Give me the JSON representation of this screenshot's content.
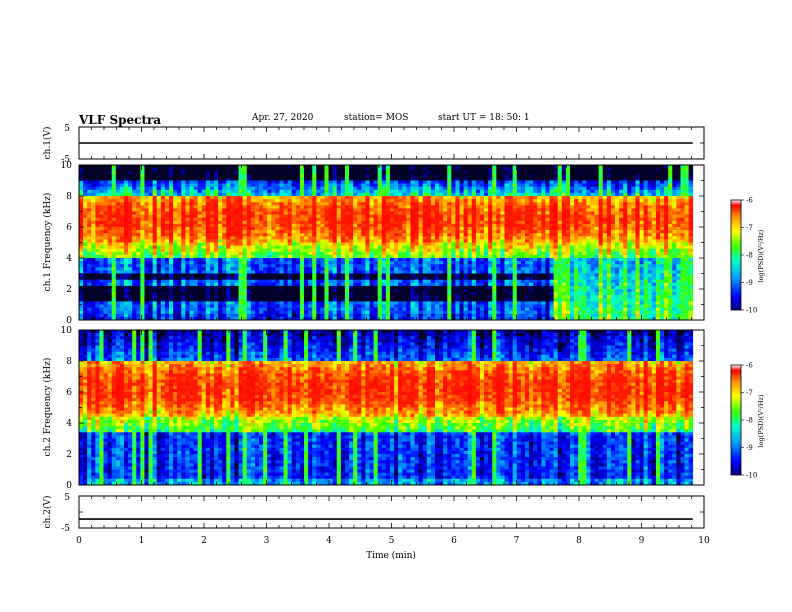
{
  "header": {
    "title": "VLF Spectra",
    "date": "Apr. 27, 2020",
    "station": "station= MOS",
    "start_ut": "start  UT =   18: 50: 1"
  },
  "chart_data": [
    {
      "id": "ch1_waveform",
      "type": "line",
      "ylabel": "ch.1(V)",
      "ylim": [
        -5,
        5
      ],
      "y_ticks": [
        "5",
        "-5"
      ],
      "x": [
        0,
        9.82
      ],
      "values": [
        0,
        0
      ],
      "xlim": [
        0,
        10
      ]
    },
    {
      "id": "ch1_spectrogram",
      "type": "heatmap",
      "ylabel": "ch.1  Frequency  (kHz)",
      "ylim": [
        0,
        10
      ],
      "y_ticks": [
        "0",
        "2",
        "4",
        "6",
        "8",
        "10"
      ],
      "xlim": [
        0,
        10
      ],
      "data_end_min": 9.82,
      "colorbar": {
        "label": "log(PSD)(V²/Hz)",
        "range": [
          -10,
          -6
        ],
        "ticks": [
          "-6",
          "-7",
          "-8",
          "-9",
          "-10"
        ]
      },
      "features": {
        "black_band_khz": [
          9.0,
          10.0
        ],
        "intense_band_khz": [
          5.0,
          8.0
        ],
        "intense_level": -7.0,
        "transition_min": 7.6
      }
    },
    {
      "id": "ch2_spectrogram",
      "type": "heatmap",
      "ylabel": "ch.2  Frequency  (kHz)",
      "ylim": [
        0,
        10
      ],
      "y_ticks": [
        "0",
        "2",
        "4",
        "6",
        "8",
        "10"
      ],
      "xlim": [
        0,
        10
      ],
      "data_end_min": 9.82,
      "colorbar": {
        "label": "log(PSD)(V²/Hz)",
        "range": [
          -10,
          -6
        ],
        "ticks": [
          "-6",
          "-7",
          "-8",
          "-9",
          "-10"
        ]
      },
      "features": {
        "intense_band_khz": [
          4.5,
          8.0
        ],
        "intense_level": -7.0
      }
    },
    {
      "id": "ch2_waveform",
      "type": "line",
      "ylabel": "ch.2(V)",
      "ylim": [
        -5,
        5
      ],
      "y_ticks": [
        "5",
        "-5"
      ],
      "x": [
        0,
        9.82
      ],
      "values": [
        -2.2,
        -2.2
      ],
      "xlim": [
        0,
        10
      ],
      "xlabel": "Time  (min)",
      "x_ticks": [
        "0",
        "1",
        "2",
        "3",
        "4",
        "5",
        "6",
        "7",
        "8",
        "9",
        "10"
      ]
    }
  ]
}
